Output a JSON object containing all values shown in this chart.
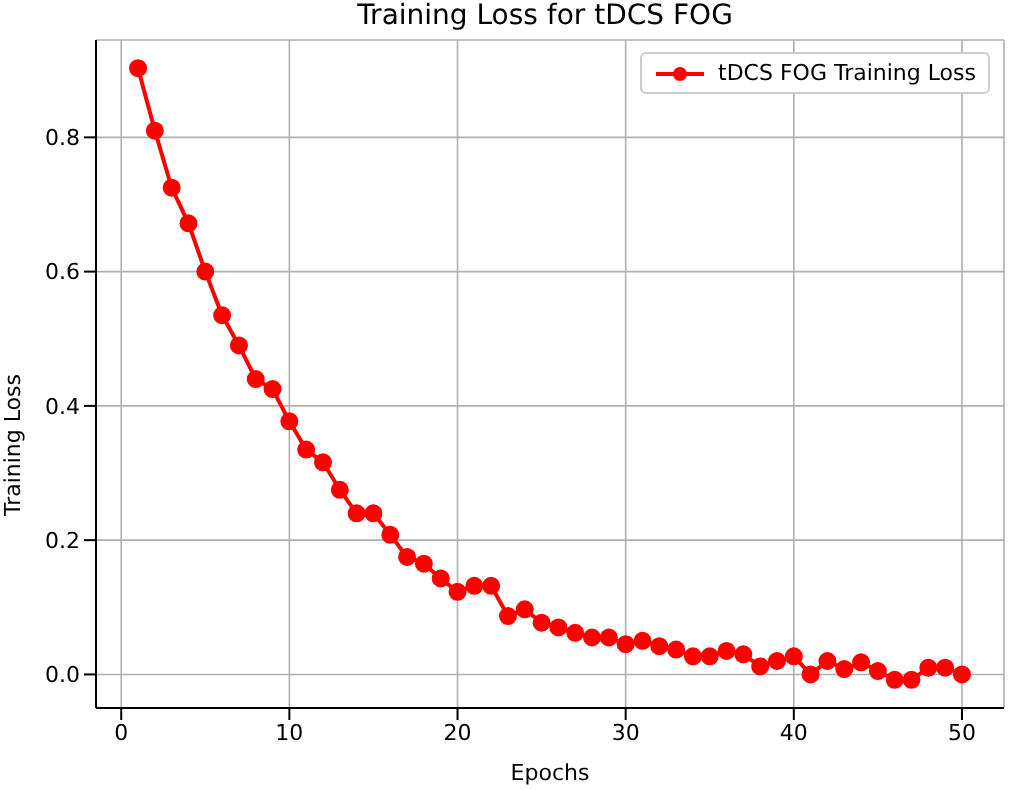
{
  "chart_data": {
    "type": "line",
    "title": "Training Loss for tDCS FOG",
    "xlabel": "Epochs",
    "ylabel": "Training Loss",
    "x": [
      1,
      2,
      3,
      4,
      5,
      6,
      7,
      8,
      9,
      10,
      11,
      12,
      13,
      14,
      15,
      16,
      17,
      18,
      19,
      20,
      21,
      22,
      23,
      24,
      25,
      26,
      27,
      28,
      29,
      30,
      31,
      32,
      33,
      34,
      35,
      36,
      37,
      38,
      39,
      40,
      41,
      42,
      43,
      44,
      45,
      46,
      47,
      48,
      49,
      50
    ],
    "series": [
      {
        "name": "tDCS FOG Training Loss",
        "color": "#ff0000",
        "values": [
          0.903,
          0.81,
          0.725,
          0.672,
          0.6,
          0.535,
          0.49,
          0.44,
          0.425,
          0.377,
          0.335,
          0.316,
          0.275,
          0.24,
          0.24,
          0.208,
          0.175,
          0.165,
          0.143,
          0.123,
          0.132,
          0.132,
          0.087,
          0.097,
          0.077,
          0.07,
          0.062,
          0.055,
          0.055,
          0.045,
          0.05,
          0.042,
          0.037,
          0.027,
          0.027,
          0.035,
          0.03,
          0.012,
          0.02,
          0.027,
          0.0,
          0.02,
          0.008,
          0.018,
          0.005,
          -0.008,
          -0.008,
          0.01,
          0.01,
          0.0
        ]
      }
    ],
    "xlim": [
      -1.5,
      52.5
    ],
    "ylim": [
      -0.05,
      0.945
    ],
    "xticks": [
      0,
      10,
      20,
      30,
      40,
      50
    ],
    "yticks": [
      {
        "value": 0,
        "label": "0.0"
      },
      0.2,
      0.4,
      0.6,
      0.8
    ],
    "grid": true,
    "legend": "top right",
    "marker": "circle",
    "line_style": "solid"
  }
}
